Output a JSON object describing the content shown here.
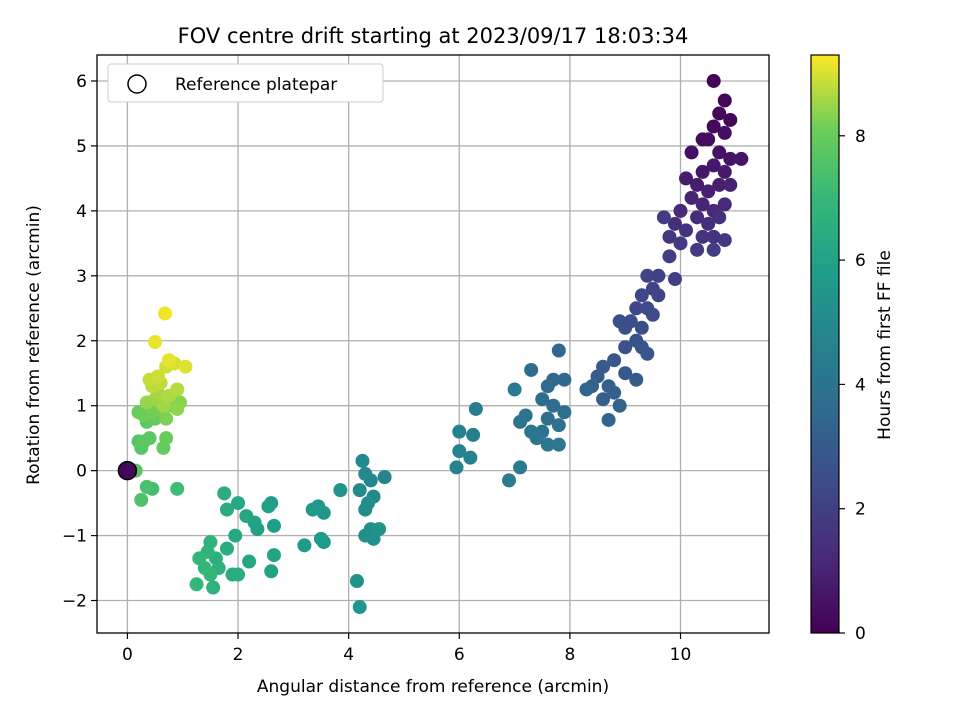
{
  "chart_data": {
    "type": "scatter",
    "title": "FOV centre drift starting at 2023/09/17 18:03:34",
    "xlabel": "Angular distance from reference (arcmin)",
    "ylabel": "Rotation from reference (arcmin)",
    "xlim": [
      -0.55,
      11.6
    ],
    "ylim": [
      -2.5,
      6.4
    ],
    "xticks": [
      0,
      2,
      4,
      6,
      8,
      10
    ],
    "yticks": [
      -2,
      -1,
      0,
      1,
      2,
      3,
      4,
      5,
      6
    ],
    "grid": true,
    "legend": {
      "location": "upper-left",
      "entries": [
        "Reference platepar"
      ]
    },
    "reference_point": {
      "x": 0,
      "y": 0
    },
    "colorbar": {
      "label": "Hours from first FF file",
      "range": [
        0,
        9.3
      ],
      "ticks": [
        0,
        2,
        4,
        6,
        8
      ],
      "colormap": "viridis"
    },
    "points": [
      [
        10.6,
        6.0,
        0.05
      ],
      [
        10.8,
        5.7,
        0.1
      ],
      [
        10.9,
        5.4,
        0.15
      ],
      [
        10.7,
        5.5,
        0.2
      ],
      [
        10.6,
        5.3,
        0.25
      ],
      [
        10.4,
        5.1,
        0.3
      ],
      [
        10.5,
        5.1,
        0.35
      ],
      [
        10.8,
        5.2,
        0.4
      ],
      [
        10.2,
        4.9,
        0.45
      ],
      [
        10.7,
        4.9,
        0.5
      ],
      [
        10.9,
        4.8,
        0.55
      ],
      [
        11.1,
        4.8,
        0.6
      ],
      [
        10.4,
        4.6,
        0.65
      ],
      [
        10.6,
        4.7,
        0.7
      ],
      [
        10.8,
        4.6,
        0.75
      ],
      [
        10.1,
        4.5,
        0.8
      ],
      [
        10.3,
        4.4,
        0.85
      ],
      [
        10.5,
        4.3,
        0.9
      ],
      [
        10.7,
        4.4,
        0.95
      ],
      [
        10.9,
        4.4,
        1.0
      ],
      [
        10.2,
        4.2,
        1.05
      ],
      [
        10.4,
        4.1,
        1.1
      ],
      [
        10.6,
        4.0,
        1.15
      ],
      [
        10.8,
        4.1,
        1.2
      ],
      [
        10.0,
        4.0,
        1.25
      ],
      [
        10.3,
        3.9,
        1.3
      ],
      [
        10.5,
        3.8,
        1.35
      ],
      [
        10.7,
        3.9,
        1.4
      ],
      [
        9.9,
        3.8,
        1.45
      ],
      [
        10.1,
        3.7,
        1.5
      ],
      [
        10.4,
        3.6,
        1.55
      ],
      [
        10.6,
        3.6,
        1.6
      ],
      [
        10.8,
        3.55,
        1.65
      ],
      [
        9.8,
        3.6,
        1.7
      ],
      [
        10.0,
        3.5,
        1.75
      ],
      [
        10.3,
        3.4,
        1.8
      ],
      [
        10.6,
        3.4,
        1.85
      ],
      [
        9.7,
        3.9,
        1.9
      ],
      [
        9.8,
        3.3,
        1.95
      ],
      [
        9.9,
        2.95,
        2.0
      ],
      [
        9.6,
        3.0,
        2.05
      ],
      [
        9.4,
        3.0,
        2.1
      ],
      [
        9.5,
        2.8,
        2.15
      ],
      [
        9.6,
        2.7,
        2.2
      ],
      [
        9.3,
        2.7,
        2.25
      ],
      [
        9.2,
        2.5,
        2.3
      ],
      [
        9.4,
        2.5,
        2.35
      ],
      [
        9.5,
        2.4,
        2.4
      ],
      [
        9.1,
        2.3,
        2.45
      ],
      [
        9.3,
        2.2,
        2.5
      ],
      [
        9.0,
        2.2,
        2.55
      ],
      [
        8.9,
        2.3,
        2.6
      ],
      [
        9.2,
        2.0,
        2.65
      ],
      [
        9.0,
        1.9,
        2.7
      ],
      [
        9.3,
        1.9,
        2.75
      ],
      [
        9.4,
        1.8,
        2.8
      ],
      [
        8.8,
        1.7,
        2.85
      ],
      [
        9.0,
        1.5,
        2.9
      ],
      [
        9.2,
        1.4,
        2.95
      ],
      [
        8.6,
        1.6,
        3.0
      ],
      [
        8.5,
        1.45,
        3.05
      ],
      [
        8.7,
        1.3,
        3.1
      ],
      [
        8.8,
        1.2,
        3.15
      ],
      [
        8.6,
        1.1,
        3.2
      ],
      [
        8.9,
        1.0,
        3.25
      ],
      [
        8.4,
        1.3,
        3.3
      ],
      [
        8.3,
        1.25,
        3.35
      ],
      [
        8.7,
        0.78,
        3.4
      ],
      [
        7.8,
        1.85,
        3.45
      ],
      [
        7.9,
        1.4,
        3.5
      ],
      [
        7.7,
        1.4,
        3.55
      ],
      [
        7.6,
        1.3,
        3.6
      ],
      [
        7.3,
        1.55,
        3.65
      ],
      [
        7.5,
        1.1,
        3.7
      ],
      [
        7.7,
        1.0,
        3.75
      ],
      [
        7.9,
        0.9,
        3.8
      ],
      [
        7.6,
        0.8,
        3.85
      ],
      [
        7.8,
        0.7,
        3.9
      ],
      [
        7.5,
        0.6,
        3.95
      ],
      [
        7.2,
        0.85,
        4.0
      ],
      [
        7.1,
        0.75,
        4.05
      ],
      [
        7.3,
        0.6,
        4.1
      ],
      [
        7.4,
        0.5,
        4.15
      ],
      [
        7.6,
        0.4,
        4.2
      ],
      [
        7.8,
        0.4,
        4.25
      ],
      [
        7.0,
        1.25,
        4.3
      ],
      [
        7.1,
        0.05,
        4.35
      ],
      [
        6.9,
        -0.15,
        4.4
      ],
      [
        6.3,
        0.95,
        4.45
      ],
      [
        6.25,
        0.55,
        4.5
      ],
      [
        6.2,
        0.2,
        4.55
      ],
      [
        6.0,
        0.6,
        4.6
      ],
      [
        6.0,
        0.3,
        4.65
      ],
      [
        5.95,
        0.05,
        4.7
      ],
      [
        4.65,
        -0.1,
        4.75
      ],
      [
        4.45,
        -0.4,
        4.8
      ],
      [
        4.4,
        -0.15,
        4.85
      ],
      [
        4.3,
        -0.05,
        4.9
      ],
      [
        4.25,
        0.15,
        4.95
      ],
      [
        4.2,
        -0.3,
        5.0
      ],
      [
        4.3,
        -0.6,
        5.05
      ],
      [
        4.35,
        -0.5,
        5.1
      ],
      [
        4.4,
        -0.9,
        5.15
      ],
      [
        4.3,
        -1.0,
        5.2
      ],
      [
        4.45,
        -1.05,
        5.25
      ],
      [
        4.55,
        -0.9,
        5.3
      ],
      [
        4.15,
        -1.7,
        5.35
      ],
      [
        4.2,
        -2.1,
        5.4
      ],
      [
        3.85,
        -0.3,
        5.45
      ],
      [
        3.55,
        -0.65,
        5.5
      ],
      [
        3.45,
        -0.55,
        5.55
      ],
      [
        3.35,
        -0.6,
        5.6
      ],
      [
        3.55,
        -1.1,
        5.65
      ],
      [
        3.2,
        -1.15,
        5.7
      ],
      [
        3.5,
        -1.05,
        5.75
      ],
      [
        2.65,
        -0.85,
        5.8
      ],
      [
        2.6,
        -0.5,
        5.85
      ],
      [
        2.55,
        -0.55,
        5.9
      ],
      [
        2.35,
        -0.9,
        5.95
      ],
      [
        2.3,
        -0.8,
        6.0
      ],
      [
        2.6,
        -1.55,
        6.05
      ],
      [
        2.65,
        -1.3,
        6.1
      ],
      [
        2.15,
        -0.7,
        6.15
      ],
      [
        2.2,
        -1.4,
        6.2
      ],
      [
        2.0,
        -0.5,
        6.25
      ],
      [
        1.95,
        -1.0,
        6.3
      ],
      [
        1.9,
        -1.6,
        6.35
      ],
      [
        1.8,
        -1.2,
        6.4
      ],
      [
        1.8,
        -0.6,
        6.45
      ],
      [
        1.75,
        -0.35,
        6.5
      ],
      [
        2.0,
        -1.6,
        6.55
      ],
      [
        1.6,
        -1.35,
        6.6
      ],
      [
        1.65,
        -1.5,
        6.65
      ],
      [
        1.55,
        -1.8,
        6.7
      ],
      [
        1.5,
        -1.1,
        6.75
      ],
      [
        1.45,
        -1.25,
        6.8
      ],
      [
        1.4,
        -1.5,
        6.85
      ],
      [
        1.3,
        -1.35,
        6.9
      ],
      [
        1.25,
        -1.75,
        6.95
      ],
      [
        1.5,
        -1.6,
        7.0
      ],
      [
        0.9,
        -0.28,
        7.2
      ],
      [
        0.45,
        -0.28,
        7.3
      ],
      [
        0.35,
        -0.25,
        7.4
      ],
      [
        0.25,
        -0.45,
        7.5
      ],
      [
        0.15,
        0.0,
        7.6
      ],
      [
        0.2,
        0.45,
        7.65
      ],
      [
        0.25,
        0.35,
        7.7
      ],
      [
        0.4,
        0.5,
        7.75
      ],
      [
        0.3,
        0.45,
        7.8
      ],
      [
        0.35,
        0.75,
        7.85
      ],
      [
        0.5,
        0.8,
        7.9
      ],
      [
        0.65,
        0.35,
        7.95
      ],
      [
        0.7,
        0.5,
        8.0
      ],
      [
        0.2,
        0.9,
        8.05
      ],
      [
        0.3,
        0.85,
        8.1
      ],
      [
        0.45,
        0.9,
        8.15
      ],
      [
        0.55,
        0.95,
        8.2
      ],
      [
        0.7,
        0.8,
        8.25
      ],
      [
        0.8,
        1.0,
        8.3
      ],
      [
        0.95,
        1.05,
        8.35
      ],
      [
        0.9,
        0.95,
        8.4
      ],
      [
        0.35,
        1.05,
        8.45
      ],
      [
        0.5,
        1.1,
        8.5
      ],
      [
        0.65,
        1.0,
        8.55
      ],
      [
        0.55,
        1.2,
        8.6
      ],
      [
        0.75,
        1.15,
        8.65
      ],
      [
        0.9,
        1.25,
        8.7
      ],
      [
        0.45,
        1.3,
        8.75
      ],
      [
        0.6,
        1.35,
        8.8
      ],
      [
        0.4,
        1.4,
        8.85
      ],
      [
        0.55,
        1.45,
        8.9
      ],
      [
        0.7,
        1.6,
        8.95
      ],
      [
        0.85,
        1.65,
        9.0
      ],
      [
        1.05,
        1.6,
        9.05
      ],
      [
        0.75,
        1.7,
        9.1
      ],
      [
        0.5,
        1.98,
        9.15
      ],
      [
        0.68,
        2.42,
        9.2
      ]
    ]
  }
}
